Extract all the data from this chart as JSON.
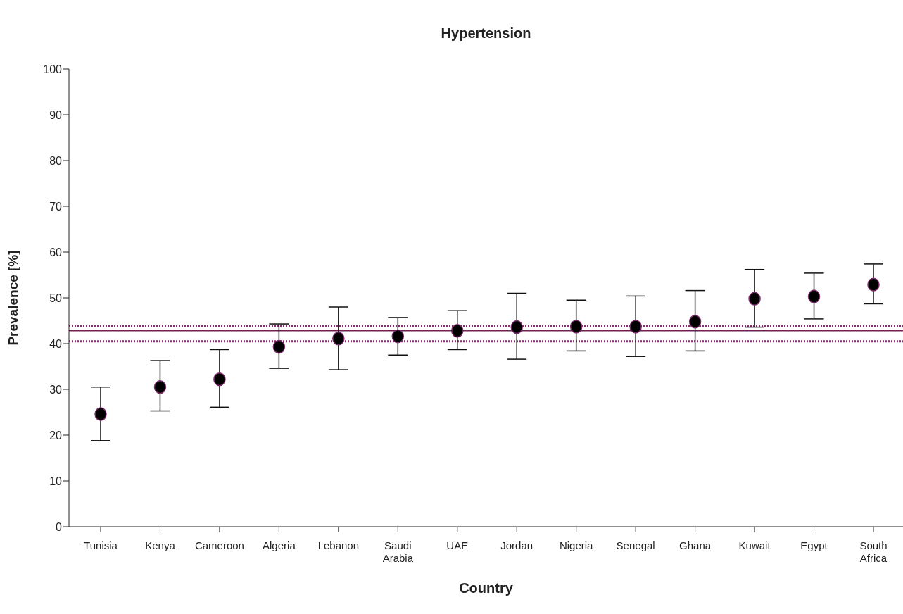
{
  "chart_data": {
    "type": "scatter",
    "title": "Hypertension",
    "xlabel": "Country",
    "ylabel": "Prevalence [%]",
    "categories": [
      "Tunisia",
      "Kenya",
      "Cameroon",
      "Algeria",
      "Lebanon",
      "Saudi Arabia",
      "UAE",
      "Jordan",
      "Nigeria",
      "Senegal",
      "Ghana",
      "Kuwait",
      "Egypt",
      "South Africa"
    ],
    "series": [
      {
        "color": "#000000",
        "values": [
          24.6,
          30.5,
          32.2,
          39.3,
          41.1,
          41.6,
          42.8,
          43.6,
          43.7,
          43.7,
          44.8,
          49.8,
          50.3,
          52.9
        ],
        "errors": [
          [
            18.8,
            30.5
          ],
          [
            25.3,
            36.3
          ],
          [
            26.1,
            38.7
          ],
          [
            34.6,
            44.3
          ],
          [
            34.3,
            48.0
          ],
          [
            37.5,
            45.7
          ],
          [
            38.7,
            47.2
          ],
          [
            36.6,
            51.0
          ],
          [
            38.4,
            49.5
          ],
          [
            37.2,
            50.4
          ],
          [
            38.4,
            51.6
          ],
          [
            43.6,
            56.2
          ],
          [
            45.4,
            55.4
          ],
          [
            48.7,
            57.4
          ]
        ]
      }
    ],
    "ylim": [
      0,
      100
    ],
    "yticks": [
      0,
      10,
      20,
      30,
      40,
      50,
      60,
      70,
      80,
      90,
      100
    ],
    "grid": false,
    "legend": false,
    "marker": "circle",
    "ref_lines": [
      {
        "axis": "y",
        "value": 42.8,
        "color": "#6e1f55",
        "line_style": "solid"
      },
      {
        "axis": "y",
        "value": 43.8,
        "color": "#8a2a6e",
        "line_style": "dotted"
      },
      {
        "axis": "y",
        "value": 40.5,
        "color": "#8a2a6e",
        "line_style": "dotted"
      }
    ]
  }
}
